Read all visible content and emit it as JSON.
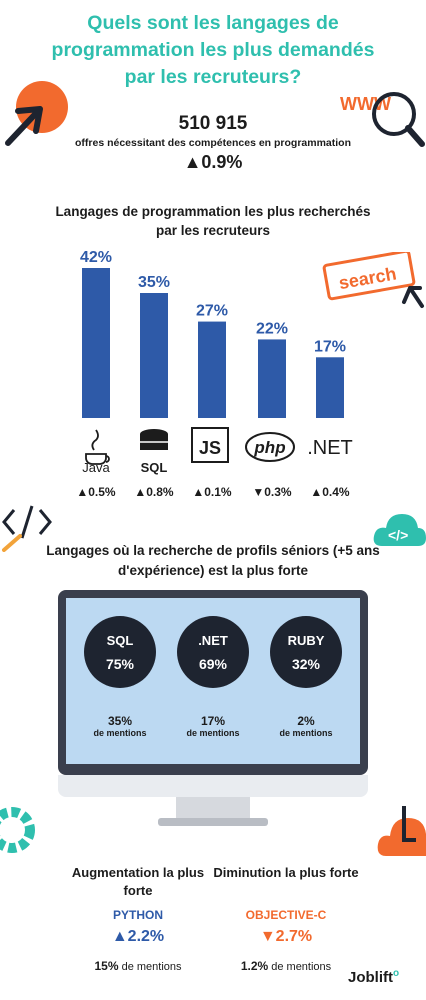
{
  "title": "Quels sont les langages de programmation les plus demandés par les recruteurs?",
  "offers": {
    "count": "510 915",
    "label": "offres nécessitant des compétences en programmation",
    "change": "▲0.9%"
  },
  "colors": {
    "teal": "#2fbfae",
    "bar": "#2e5aa8",
    "orange": "#f26a2e",
    "dark": "#1e2430",
    "screen": "#bcd9f2"
  },
  "decorations": {
    "www_tag": "WWW",
    "search_tag": "search"
  },
  "chart_data": [
    {
      "type": "bar",
      "title": "Langages de programmation les plus recherchés par les recruteurs",
      "categories": [
        "Java",
        "SQL",
        "JS",
        "php",
        ".NET"
      ],
      "values": [
        42,
        35,
        27,
        22,
        17
      ],
      "value_labels": [
        "42%",
        "35%",
        "27%",
        "22%",
        "17%"
      ],
      "changes": [
        "▲0.5%",
        "▲0.8%",
        "▲0.1%",
        "▼0.3%",
        "▲0.4%"
      ],
      "icons": [
        "java-cup-icon",
        "database-icon",
        "js-logo-icon",
        "php-logo-icon",
        "dotnet-logo-icon"
      ],
      "ylim": [
        0,
        42
      ]
    },
    {
      "type": "table",
      "title": "Langages où la recherche de profils séniors (+5 ans d'expérience) est la plus forte",
      "rows": [
        {
          "lang": "SQL",
          "senior_pct": "75%",
          "mentions_pct": "35%",
          "mentions_label": "de mentions"
        },
        {
          "lang": ".NET",
          "senior_pct": "69%",
          "mentions_pct": "17%",
          "mentions_label": "de mentions"
        },
        {
          "lang": "RUBY",
          "senior_pct": "32%",
          "mentions_pct": "2%",
          "mentions_label": "de mentions"
        }
      ]
    }
  ],
  "stats": {
    "increase": {
      "title": "Augmentation la plus forte",
      "lang": "PYTHON",
      "change": "▲2.2%",
      "mentions_pct": "15%",
      "mentions_label": "de mentions"
    },
    "decrease": {
      "title": "Diminution la plus forte",
      "lang": "OBJECTIVE-C",
      "change": "▼2.7%",
      "mentions_pct": "1.2%",
      "mentions_label": "de mentions"
    }
  },
  "logo": "Joblift"
}
